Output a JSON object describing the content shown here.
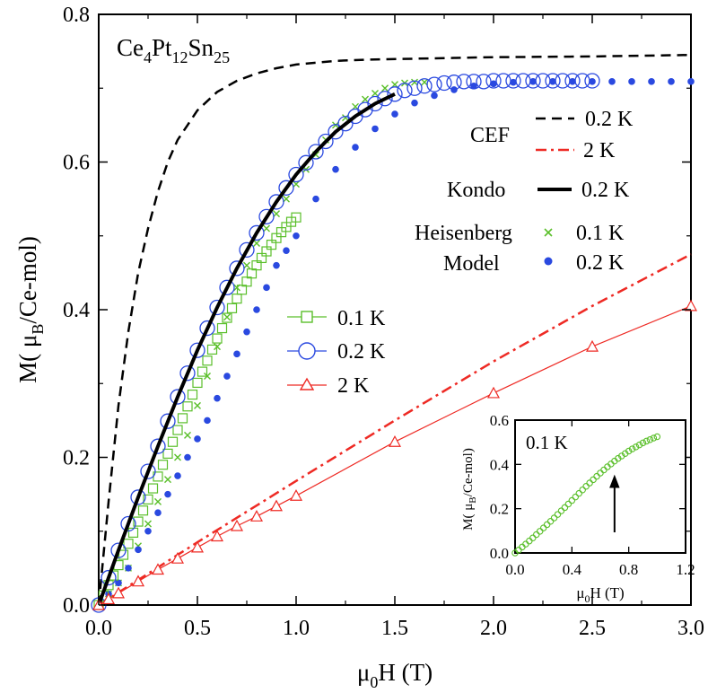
{
  "chart_data": {
    "type": "scatter",
    "annotation": {
      "prefix": "Ce",
      "sub1": "4",
      "mid1": "Pt",
      "sub2": "12",
      "mid2": "Sn",
      "sub3": "25"
    },
    "xlabel": {
      "pre": "μ",
      "sub": "0",
      "post": "H (T)"
    },
    "ylabel": {
      "pre": "M( μ",
      "sub": "B",
      "post": "/Ce-mol)"
    },
    "xlim": [
      0,
      3.0
    ],
    "ylim": [
      0,
      0.8
    ],
    "xticks": [
      "0.0",
      "0.5",
      "1.0",
      "1.5",
      "2.0",
      "2.5",
      "3.0"
    ],
    "yticks": [
      "0.0",
      "0.2",
      "0.4",
      "0.6",
      "0.8"
    ],
    "series": [
      {
        "name": "0.1 K",
        "kind": "open-square",
        "color": "#5abf2a",
        "x": [
          0,
          0.025,
          0.05,
          0.075,
          0.1,
          0.125,
          0.15,
          0.175,
          0.2,
          0.225,
          0.25,
          0.275,
          0.3,
          0.325,
          0.35,
          0.375,
          0.4,
          0.425,
          0.45,
          0.475,
          0.5,
          0.525,
          0.55,
          0.575,
          0.6,
          0.625,
          0.65,
          0.675,
          0.7,
          0.725,
          0.75,
          0.775,
          0.8,
          0.825,
          0.85,
          0.875,
          0.9,
          0.925,
          0.95,
          0.975,
          1.0
        ],
        "y": [
          0,
          0.013,
          0.027,
          0.04,
          0.054,
          0.068,
          0.083,
          0.098,
          0.113,
          0.128,
          0.143,
          0.158,
          0.174,
          0.19,
          0.205,
          0.221,
          0.237,
          0.253,
          0.269,
          0.285,
          0.301,
          0.316,
          0.331,
          0.346,
          0.361,
          0.375,
          0.389,
          0.402,
          0.415,
          0.427,
          0.438,
          0.449,
          0.46,
          0.47,
          0.479,
          0.488,
          0.497,
          0.505,
          0.512,
          0.519,
          0.525
        ]
      },
      {
        "name": "0.2 K",
        "kind": "open-circle",
        "color": "#2a49e0",
        "x": [
          0,
          0.05,
          0.1,
          0.15,
          0.2,
          0.25,
          0.3,
          0.35,
          0.4,
          0.45,
          0.5,
          0.55,
          0.6,
          0.65,
          0.7,
          0.75,
          0.8,
          0.85,
          0.9,
          0.95,
          1.0,
          1.05,
          1.1,
          1.15,
          1.2,
          1.25,
          1.3,
          1.35,
          1.4,
          1.45,
          1.5,
          1.55,
          1.6,
          1.65,
          1.7,
          1.75,
          1.8,
          1.85,
          1.9,
          1.95,
          2.0,
          2.05,
          2.1,
          2.15,
          2.2,
          2.25,
          2.3,
          2.35,
          2.4,
          2.45,
          2.5
        ],
        "y": [
          0,
          0.037,
          0.074,
          0.11,
          0.146,
          0.181,
          0.215,
          0.249,
          0.282,
          0.314,
          0.345,
          0.375,
          0.403,
          0.43,
          0.456,
          0.481,
          0.504,
          0.526,
          0.546,
          0.565,
          0.583,
          0.599,
          0.614,
          0.628,
          0.641,
          0.652,
          0.662,
          0.671,
          0.679,
          0.686,
          0.692,
          0.697,
          0.7,
          0.703,
          0.705,
          0.707,
          0.708,
          0.709,
          0.709,
          0.709,
          0.71,
          0.71,
          0.71,
          0.71,
          0.71,
          0.71,
          0.71,
          0.71,
          0.71,
          0.71,
          0.71
        ]
      },
      {
        "name": "2 K",
        "kind": "open-triangle-line",
        "color": "#ee2a24",
        "x": [
          0,
          0.05,
          0.1,
          0.2,
          0.3,
          0.4,
          0.5,
          0.6,
          0.7,
          0.8,
          0.9,
          1.0,
          1.5,
          2.0,
          2.5,
          3.0
        ],
        "y": [
          0,
          0.008,
          0.016,
          0.032,
          0.048,
          0.063,
          0.078,
          0.093,
          0.107,
          0.12,
          0.134,
          0.148,
          0.221,
          0.287,
          0.35,
          0.405
        ]
      },
      {
        "name": "Heisenberg Model 0.1 K",
        "kind": "cross",
        "color": "#5abf2a",
        "x": [
          0.05,
          0.1,
          0.15,
          0.2,
          0.25,
          0.3,
          0.35,
          0.4,
          0.45,
          0.5,
          0.55,
          0.6,
          0.65,
          0.7,
          0.75,
          0.8,
          0.85,
          0.9,
          0.95,
          1.0,
          1.05,
          1.1,
          1.15,
          1.2,
          1.25,
          1.3,
          1.35,
          1.4,
          1.45,
          1.5,
          1.55,
          1.6,
          1.65
        ],
        "y": [
          0.015,
          0.03,
          0.05,
          0.08,
          0.11,
          0.14,
          0.17,
          0.2,
          0.23,
          0.27,
          0.31,
          0.35,
          0.39,
          0.43,
          0.46,
          0.49,
          0.51,
          0.53,
          0.55,
          0.57,
          0.59,
          0.61,
          0.63,
          0.65,
          0.66,
          0.675,
          0.685,
          0.693,
          0.7,
          0.705,
          0.707,
          0.708,
          0.708
        ]
      },
      {
        "name": "Heisenberg Model 0.2 K",
        "kind": "filled-circle",
        "color": "#2a49e0",
        "x": [
          0.05,
          0.1,
          0.15,
          0.2,
          0.25,
          0.3,
          0.35,
          0.4,
          0.45,
          0.5,
          0.55,
          0.6,
          0.65,
          0.7,
          0.75,
          0.8,
          0.85,
          0.9,
          0.95,
          1.0,
          1.1,
          1.2,
          1.3,
          1.4,
          1.5,
          1.6,
          1.7,
          1.8,
          1.9,
          2.0,
          2.1,
          2.2,
          2.3,
          2.4,
          2.5,
          2.6,
          2.7,
          2.8,
          2.9,
          3.0
        ],
        "y": [
          0.015,
          0.03,
          0.05,
          0.075,
          0.1,
          0.125,
          0.15,
          0.175,
          0.2,
          0.225,
          0.25,
          0.28,
          0.31,
          0.34,
          0.37,
          0.4,
          0.43,
          0.46,
          0.48,
          0.5,
          0.55,
          0.59,
          0.62,
          0.645,
          0.665,
          0.68,
          0.69,
          0.698,
          0.703,
          0.706,
          0.708,
          0.709,
          0.709,
          0.709,
          0.709,
          0.709,
          0.709,
          0.709,
          0.709,
          0.709
        ]
      },
      {
        "name": "CEF 0.2 K",
        "kind": "dash",
        "color": "#000000",
        "x": [
          0,
          0.05,
          0.1,
          0.15,
          0.2,
          0.25,
          0.3,
          0.35,
          0.4,
          0.45,
          0.5,
          0.6,
          0.7,
          0.8,
          0.9,
          1.0,
          1.2,
          1.4,
          1.6,
          1.8,
          2.0,
          2.5,
          3.0
        ],
        "y": [
          0,
          0.14,
          0.27,
          0.37,
          0.45,
          0.51,
          0.56,
          0.6,
          0.63,
          0.65,
          0.67,
          0.695,
          0.71,
          0.72,
          0.727,
          0.732,
          0.737,
          0.739,
          0.74,
          0.741,
          0.742,
          0.743,
          0.745
        ]
      },
      {
        "name": "CEF 2 K",
        "kind": "dashdot",
        "color": "#ee2a24",
        "x": [
          0,
          0.5,
          1.0,
          1.5,
          2.0,
          2.5,
          3.0
        ],
        "y": [
          0,
          0.085,
          0.168,
          0.25,
          0.33,
          0.405,
          0.475
        ]
      },
      {
        "name": "Kondo 0.2 K",
        "kind": "thick-line",
        "color": "#000000",
        "x": [
          0,
          0.1,
          0.2,
          0.3,
          0.4,
          0.5,
          0.6,
          0.7,
          0.8,
          0.9,
          1.0,
          1.1,
          1.2,
          1.3,
          1.4,
          1.5
        ],
        "y": [
          0,
          0.074,
          0.146,
          0.215,
          0.282,
          0.345,
          0.403,
          0.456,
          0.504,
          0.546,
          0.583,
          0.614,
          0.641,
          0.662,
          0.679,
          0.692
        ]
      }
    ],
    "legend_main": [
      "0.1 K",
      "0.2 K",
      "2 K"
    ],
    "legend_right": {
      "cef_label": "CEF",
      "cef_items": [
        "0.2 K",
        "2 K"
      ],
      "kondo_label": "Kondo",
      "kondo_item": "0.2 K",
      "heis_label1": "Heisenberg",
      "heis_label2": "Model",
      "heis_items": [
        "0.1 K",
        "0.2 K"
      ]
    },
    "inset": {
      "type": "scatter",
      "label": "0.1 K",
      "xlim": [
        0,
        1.2
      ],
      "ylim": [
        0,
        0.6
      ],
      "xticks": [
        "0.0",
        "0.4",
        "0.8",
        "1.2"
      ],
      "yticks": [
        "0.0",
        "0.2",
        "0.4",
        "0.6"
      ],
      "xlabel": {
        "pre": "μ",
        "sub": "0",
        "post": "H (T)"
      },
      "ylabel": {
        "pre": "M( μ",
        "sub": "B",
        "post": "/Ce-mol)"
      },
      "arrow_at_x": 0.7,
      "x": [
        0,
        0.025,
        0.05,
        0.075,
        0.1,
        0.125,
        0.15,
        0.175,
        0.2,
        0.225,
        0.25,
        0.275,
        0.3,
        0.325,
        0.35,
        0.375,
        0.4,
        0.425,
        0.45,
        0.475,
        0.5,
        0.525,
        0.55,
        0.575,
        0.6,
        0.625,
        0.65,
        0.675,
        0.7,
        0.725,
        0.75,
        0.775,
        0.8,
        0.825,
        0.85,
        0.875,
        0.9,
        0.925,
        0.95,
        0.975,
        1.0
      ],
      "y": [
        0,
        0.013,
        0.027,
        0.04,
        0.054,
        0.068,
        0.083,
        0.098,
        0.113,
        0.128,
        0.143,
        0.158,
        0.174,
        0.19,
        0.205,
        0.221,
        0.237,
        0.253,
        0.269,
        0.285,
        0.301,
        0.316,
        0.331,
        0.346,
        0.361,
        0.375,
        0.389,
        0.402,
        0.415,
        0.427,
        0.438,
        0.449,
        0.46,
        0.47,
        0.479,
        0.488,
        0.497,
        0.505,
        0.512,
        0.519,
        0.525
      ]
    }
  }
}
